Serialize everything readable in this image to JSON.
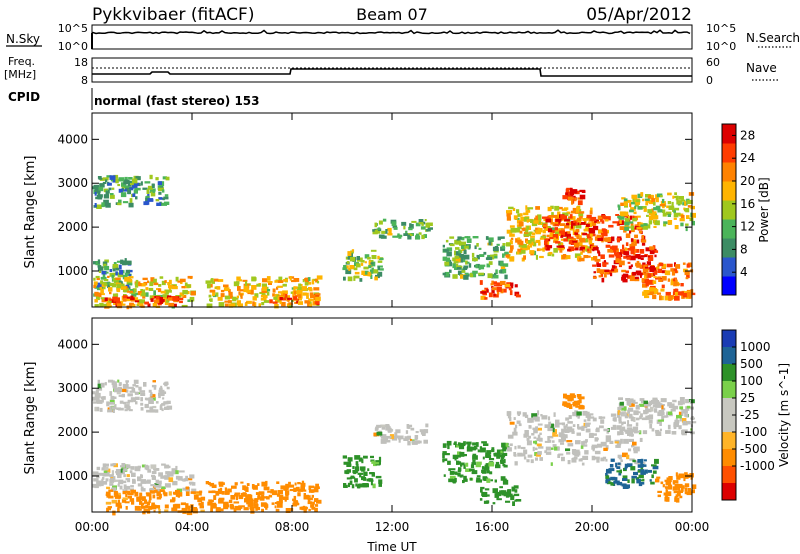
{
  "header": {
    "station": "Pykkvibaer (fitACF)",
    "beam": "Beam 07",
    "date": "05/Apr/2012"
  },
  "noise_panel": {
    "left_label": "N.Sky",
    "left_ticks": [
      "10^5",
      "10^0"
    ],
    "right_label": "N.Search",
    "right_ticks": [
      "10^5",
      "10^0"
    ]
  },
  "freq_panel": {
    "left_label_line1": "Freq.",
    "left_label_line2": "[MHz]",
    "left_ticks": [
      "18",
      "8"
    ],
    "right_label": "Nave",
    "right_ticks": [
      "60",
      "0"
    ]
  },
  "cpid": {
    "label": "CPID",
    "value": "normal (fast stereo) 153"
  },
  "colors": {
    "power": [
      "#0000ff",
      "#2a56cc",
      "#3c8c64",
      "#4bb45a",
      "#a0c81e",
      "#ffb400",
      "#ff8200",
      "#ff3c00",
      "#dc0000"
    ],
    "velocity": [
      "#1a3cb4",
      "#1e6496",
      "#2d9128",
      "#7ad04a",
      "#c8c8c0",
      "#c8c8c0",
      "#ffb428",
      "#ff8c00",
      "#ff5000",
      "#dc0000"
    ],
    "ground_scatter": "#c0c0bc"
  },
  "chart_data": [
    {
      "type": "heatmap",
      "parameter": "power",
      "ylabel": "Slant Range [km]",
      "xlabel": "Time UT",
      "x_ticks": [
        "00:00",
        "04:00",
        "08:00",
        "12:00",
        "16:00",
        "20:00",
        "00:00"
      ],
      "y_ticks": [
        1000,
        2000,
        3000,
        4000
      ],
      "xlim_hours": [
        0,
        24
      ],
      "ylim_km": [
        180,
        4600
      ],
      "colorbar": {
        "label": "Power [dB]",
        "ticks": [
          "4",
          "8",
          "12",
          "16",
          "20",
          "24",
          "28"
        ],
        "range": [
          0,
          30
        ]
      },
      "regions": [
        {
          "t0": 0.0,
          "t1": 3.0,
          "r0": 2500,
          "r1": 3200,
          "level": 10
        },
        {
          "t0": 0.0,
          "t1": 1.5,
          "r0": 600,
          "r1": 1300,
          "level": 10
        },
        {
          "t0": 0.0,
          "t1": 4.0,
          "r0": 200,
          "r1": 900,
          "level": 18
        },
        {
          "t0": 0.5,
          "t1": 3.5,
          "r0": 250,
          "r1": 450,
          "level": 26
        },
        {
          "t0": 4.5,
          "t1": 9.0,
          "r0": 250,
          "r1": 900,
          "level": 18
        },
        {
          "t0": 7.0,
          "t1": 9.0,
          "r0": 300,
          "r1": 500,
          "level": 24
        },
        {
          "t0": 10.0,
          "t1": 11.5,
          "r0": 800,
          "r1": 1500,
          "level": 14
        },
        {
          "t0": 11.2,
          "t1": 13.5,
          "r0": 1800,
          "r1": 2200,
          "level": 12
        },
        {
          "t0": 14.0,
          "t1": 16.5,
          "r0": 900,
          "r1": 1800,
          "level": 12
        },
        {
          "t0": 15.5,
          "t1": 17.0,
          "r0": 400,
          "r1": 800,
          "level": 24
        },
        {
          "t0": 16.5,
          "t1": 20.0,
          "r0": 1300,
          "r1": 2500,
          "level": 18
        },
        {
          "t0": 18.0,
          "t1": 22.0,
          "r0": 1500,
          "r1": 2300,
          "level": 24
        },
        {
          "t0": 18.8,
          "t1": 19.6,
          "r0": 2600,
          "r1": 2900,
          "level": 26
        },
        {
          "t0": 20.0,
          "t1": 22.5,
          "r0": 800,
          "r1": 1600,
          "level": 26
        },
        {
          "t0": 21.0,
          "t1": 24.0,
          "r0": 2000,
          "r1": 2800,
          "level": 16
        },
        {
          "t0": 22.0,
          "t1": 24.0,
          "r0": 400,
          "r1": 1200,
          "level": 22
        }
      ]
    },
    {
      "type": "heatmap",
      "parameter": "velocity",
      "ylabel": "Slant Range [km]",
      "xlabel": "Time UT",
      "x_ticks": [
        "00:00",
        "04:00",
        "08:00",
        "12:00",
        "16:00",
        "20:00",
        "00:00"
      ],
      "y_ticks": [
        1000,
        2000,
        3000,
        4000
      ],
      "xlim_hours": [
        0,
        24
      ],
      "ylim_km": [
        180,
        4600
      ],
      "colorbar": {
        "label": "Velocity [m s^-1]",
        "ticks": [
          "1000",
          "500",
          "100",
          "25",
          "-25",
          "-100",
          "-500",
          "-1000"
        ]
      },
      "regions": [
        {
          "t0": 0.0,
          "t1": 3.0,
          "r0": 2500,
          "r1": 3200,
          "kind": "gs"
        },
        {
          "t0": 0.0,
          "t1": 4.0,
          "r0": 700,
          "r1": 1300,
          "kind": "gs"
        },
        {
          "t0": 0.5,
          "t1": 4.5,
          "r0": 200,
          "r1": 700,
          "kind": "v",
          "v": -150
        },
        {
          "t0": 4.5,
          "t1": 9.0,
          "r0": 250,
          "r1": 900,
          "kind": "v",
          "v": -200
        },
        {
          "t0": 10.0,
          "t1": 11.5,
          "r0": 800,
          "r1": 1500,
          "kind": "v",
          "v": 150
        },
        {
          "t0": 11.2,
          "t1": 13.5,
          "r0": 1800,
          "r1": 2200,
          "kind": "gs"
        },
        {
          "t0": 14.0,
          "t1": 16.5,
          "r0": 900,
          "r1": 1800,
          "kind": "v",
          "v": 150
        },
        {
          "t0": 15.5,
          "t1": 17.0,
          "r0": 400,
          "r1": 800,
          "kind": "v",
          "v": 200
        },
        {
          "t0": 16.5,
          "t1": 22.0,
          "r0": 1300,
          "r1": 2500,
          "kind": "gs"
        },
        {
          "t0": 18.8,
          "t1": 19.6,
          "r0": 2600,
          "r1": 2900,
          "kind": "v",
          "v": -300
        },
        {
          "t0": 21.0,
          "t1": 24.0,
          "r0": 2000,
          "r1": 2800,
          "kind": "gs"
        },
        {
          "t0": 20.5,
          "t1": 22.5,
          "r0": 800,
          "r1": 1400,
          "kind": "v",
          "v": 600
        },
        {
          "t0": 22.5,
          "t1": 24.0,
          "r0": 500,
          "r1": 1100,
          "kind": "v",
          "v": -300
        }
      ]
    }
  ]
}
